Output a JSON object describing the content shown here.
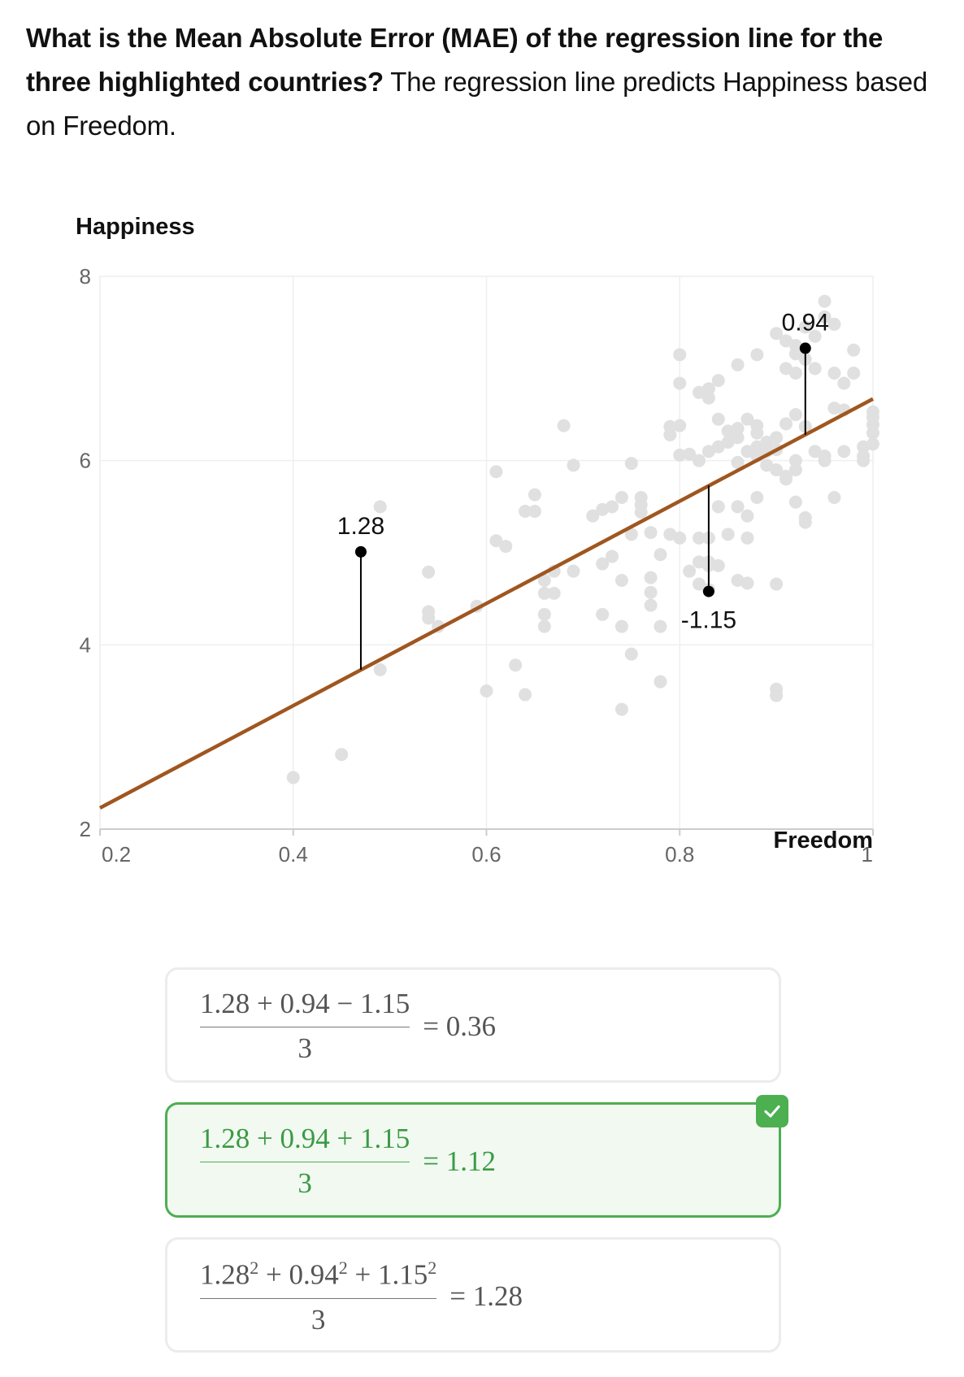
{
  "question": {
    "bold": "What is the Mean Absolute Error (MAE) of the regression line for the three highlighted countries?",
    "rest": " The regression line predicts Happiness based on Freedom."
  },
  "chart_data": {
    "type": "scatter",
    "ylabel": "Happiness",
    "xlabel": "Freedom",
    "xlim": [
      0.2,
      1.0
    ],
    "ylim": [
      2,
      8
    ],
    "x_ticks": [
      "0.2",
      "0.4",
      "0.6",
      "0.8",
      "1"
    ],
    "y_ticks": [
      "2",
      "4",
      "6",
      "8"
    ],
    "grid": true,
    "colors": {
      "points": "#e0e0e0",
      "regression_line": "#a0561f",
      "highlight": "#000000"
    },
    "regression_line": {
      "x": [
        0.2,
        1.0
      ],
      "y": [
        2.23,
        6.67
      ]
    },
    "points": [
      [
        0.4,
        2.56
      ],
      [
        0.45,
        2.81
      ],
      [
        0.49,
        3.73
      ],
      [
        0.49,
        5.5
      ],
      [
        0.54,
        4.79
      ],
      [
        0.54,
        4.36
      ],
      [
        0.54,
        4.29
      ],
      [
        0.55,
        4.2
      ],
      [
        0.59,
        4.42
      ],
      [
        0.6,
        3.5
      ],
      [
        0.61,
        5.88
      ],
      [
        0.61,
        5.13
      ],
      [
        0.62,
        5.07
      ],
      [
        0.63,
        3.78
      ],
      [
        0.64,
        3.46
      ],
      [
        0.64,
        5.45
      ],
      [
        0.65,
        5.45
      ],
      [
        0.65,
        5.63
      ],
      [
        0.66,
        4.7
      ],
      [
        0.66,
        4.56
      ],
      [
        0.66,
        4.33
      ],
      [
        0.66,
        4.2
      ],
      [
        0.67,
        4.56
      ],
      [
        0.67,
        4.8
      ],
      [
        0.68,
        6.38
      ],
      [
        0.69,
        5.95
      ],
      [
        0.69,
        4.8
      ],
      [
        0.71,
        5.4
      ],
      [
        0.72,
        5.47
      ],
      [
        0.72,
        4.88
      ],
      [
        0.72,
        4.33
      ],
      [
        0.73,
        4.96
      ],
      [
        0.73,
        5.5
      ],
      [
        0.74,
        5.6
      ],
      [
        0.74,
        4.7
      ],
      [
        0.74,
        4.2
      ],
      [
        0.74,
        3.3
      ],
      [
        0.75,
        3.9
      ],
      [
        0.75,
        5.2
      ],
      [
        0.75,
        5.97
      ],
      [
        0.76,
        5.6
      ],
      [
        0.76,
        5.44
      ],
      [
        0.76,
        5.52
      ],
      [
        0.77,
        4.73
      ],
      [
        0.77,
        4.43
      ],
      [
        0.77,
        5.22
      ],
      [
        0.77,
        4.57
      ],
      [
        0.78,
        4.2
      ],
      [
        0.78,
        3.6
      ],
      [
        0.78,
        4.98
      ],
      [
        0.79,
        5.2
      ],
      [
        0.79,
        6.28
      ],
      [
        0.79,
        6.37
      ],
      [
        0.8,
        6.38
      ],
      [
        0.8,
        7.15
      ],
      [
        0.8,
        5.16
      ],
      [
        0.81,
        4.8
      ],
      [
        0.82,
        4.9
      ],
      [
        0.82,
        5.16
      ],
      [
        0.82,
        4.66
      ],
      [
        0.83,
        4.9
      ],
      [
        0.83,
        5.16
      ],
      [
        0.83,
        4.86
      ],
      [
        0.83,
        4.6
      ],
      [
        0.84,
        6.45
      ],
      [
        0.84,
        5.5
      ],
      [
        0.84,
        4.86
      ],
      [
        0.85,
        5.2
      ],
      [
        0.86,
        5.5
      ],
      [
        0.86,
        4.7
      ],
      [
        0.87,
        5.16
      ],
      [
        0.87,
        5.4
      ],
      [
        0.88,
        6.38
      ],
      [
        0.88,
        5.6
      ],
      [
        0.89,
        6.2
      ],
      [
        0.9,
        3.52
      ],
      [
        0.9,
        4.66
      ],
      [
        0.9,
        6.12
      ],
      [
        0.9,
        3.45
      ],
      [
        0.91,
        5.8
      ],
      [
        0.91,
        7.0
      ],
      [
        0.92,
        6.95
      ],
      [
        0.92,
        7.16
      ],
      [
        0.92,
        5.9
      ],
      [
        0.92,
        6.5
      ],
      [
        0.93,
        6.37
      ],
      [
        0.93,
        5.33
      ],
      [
        0.94,
        7.0
      ],
      [
        0.94,
        6.1
      ],
      [
        0.95,
        6.05
      ],
      [
        0.95,
        6.0
      ],
      [
        0.96,
        5.6
      ],
      [
        0.96,
        6.57
      ],
      [
        0.96,
        6.95
      ],
      [
        0.97,
        6.55
      ],
      [
        0.97,
        6.1
      ],
      [
        0.98,
        6.95
      ],
      [
        0.98,
        7.2
      ],
      [
        0.99,
        6.15
      ],
      [
        0.99,
        6.0
      ],
      [
        0.99,
        6.05
      ],
      [
        1.0,
        6.39
      ],
      [
        1.0,
        6.53
      ],
      [
        1.0,
        6.18
      ],
      [
        1.0,
        6.47
      ],
      [
        1.0,
        6.3
      ],
      [
        0.9,
        7.38
      ],
      [
        0.91,
        7.3
      ],
      [
        0.92,
        7.25
      ],
      [
        0.93,
        7.45
      ],
      [
        0.94,
        7.35
      ],
      [
        0.95,
        7.56
      ],
      [
        0.95,
        7.73
      ],
      [
        0.96,
        7.48
      ],
      [
        0.97,
        6.84
      ],
      [
        0.93,
        7.1
      ],
      [
        0.88,
        7.15
      ],
      [
        0.86,
        7.04
      ],
      [
        0.84,
        6.87
      ],
      [
        0.83,
        6.78
      ],
      [
        0.82,
        6.74
      ],
      [
        0.8,
        6.84
      ],
      [
        0.83,
        6.68
      ],
      [
        0.85,
        6.2
      ],
      [
        0.86,
        6.35
      ],
      [
        0.87,
        6.45
      ],
      [
        0.88,
        6.3
      ],
      [
        0.89,
        6.1
      ],
      [
        0.9,
        6.25
      ],
      [
        0.91,
        6.4
      ],
      [
        0.92,
        6.0
      ],
      [
        0.86,
        5.98
      ],
      [
        0.87,
        6.1
      ],
      [
        0.88,
        6.15
      ],
      [
        0.89,
        5.95
      ],
      [
        0.9,
        5.9
      ],
      [
        0.91,
        5.83
      ],
      [
        0.92,
        5.55
      ],
      [
        0.93,
        5.38
      ],
      [
        0.87,
        4.67
      ],
      [
        0.88,
        6.05
      ],
      [
        0.84,
        6.15
      ],
      [
        0.85,
        6.32
      ],
      [
        0.86,
        6.25
      ],
      [
        0.82,
        6.0
      ],
      [
        0.83,
        6.1
      ],
      [
        0.81,
        6.07
      ],
      [
        0.8,
        6.06
      ]
    ],
    "highlighted": [
      {
        "x": 0.47,
        "y": 5.01,
        "predicted": 3.73,
        "label": "1.28"
      },
      {
        "x": 0.93,
        "y": 7.22,
        "predicted": 6.28,
        "label": "0.94"
      },
      {
        "x": 0.83,
        "y": 4.58,
        "predicted": 5.73,
        "label": "-1.15"
      }
    ]
  },
  "options": [
    {
      "numerator": "1.28 + 0.94 − 1.15",
      "denominator": "3",
      "result": "= 0.36",
      "correct": false
    },
    {
      "numerator": "1.28 + 0.94 + 1.15",
      "denominator": "3",
      "result": "= 1.12",
      "correct": true
    },
    {
      "numerator_parts": [
        "1.28",
        "2",
        " + 0.94",
        "2",
        " + 1.15",
        "2"
      ],
      "denominator": "3",
      "result": "= 1.28",
      "correct": false
    }
  ]
}
